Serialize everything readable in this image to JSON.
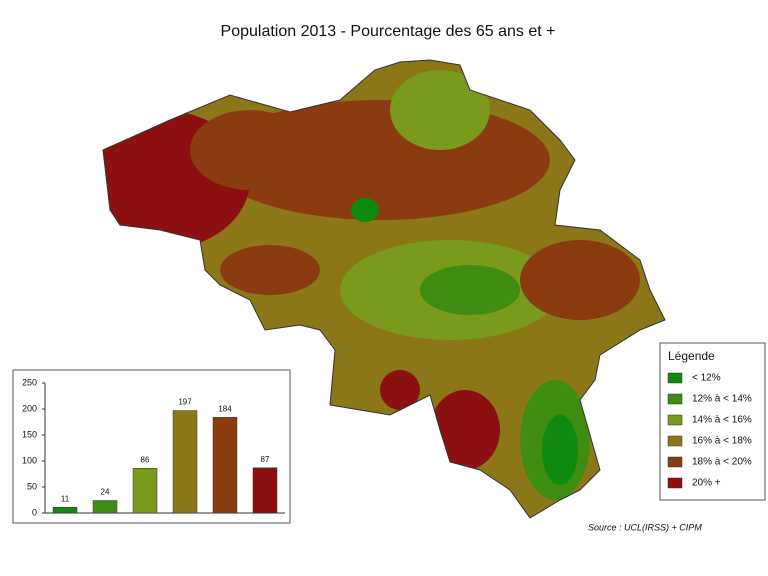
{
  "title": "Population 2013 - Pourcentage des 65 ans et +",
  "legend": {
    "title": "Légende",
    "items": [
      {
        "label": "< 12%",
        "color": "#0e8a0e"
      },
      {
        "label": "12% à < 14%",
        "color": "#3f8c12"
      },
      {
        "label": "14% à < 16%",
        "color": "#7a9a1c"
      },
      {
        "label": "16% à < 18%",
        "color": "#8c7718"
      },
      {
        "label": "18% à < 20%",
        "color": "#8a3c10"
      },
      {
        "label": "20% +",
        "color": "#8c1010"
      }
    ]
  },
  "source": "Source : UCL(IRSS) + CIPM",
  "chart_data": {
    "type": "bar",
    "values": [
      11,
      24,
      86,
      197,
      184,
      87
    ],
    "colors": [
      "#0e8a0e",
      "#3f8c12",
      "#7a9a1c",
      "#8c7718",
      "#8a3c10",
      "#8c1010"
    ],
    "ylim": [
      0,
      250
    ],
    "yticks": [
      0,
      50,
      100,
      150,
      200,
      250
    ]
  }
}
